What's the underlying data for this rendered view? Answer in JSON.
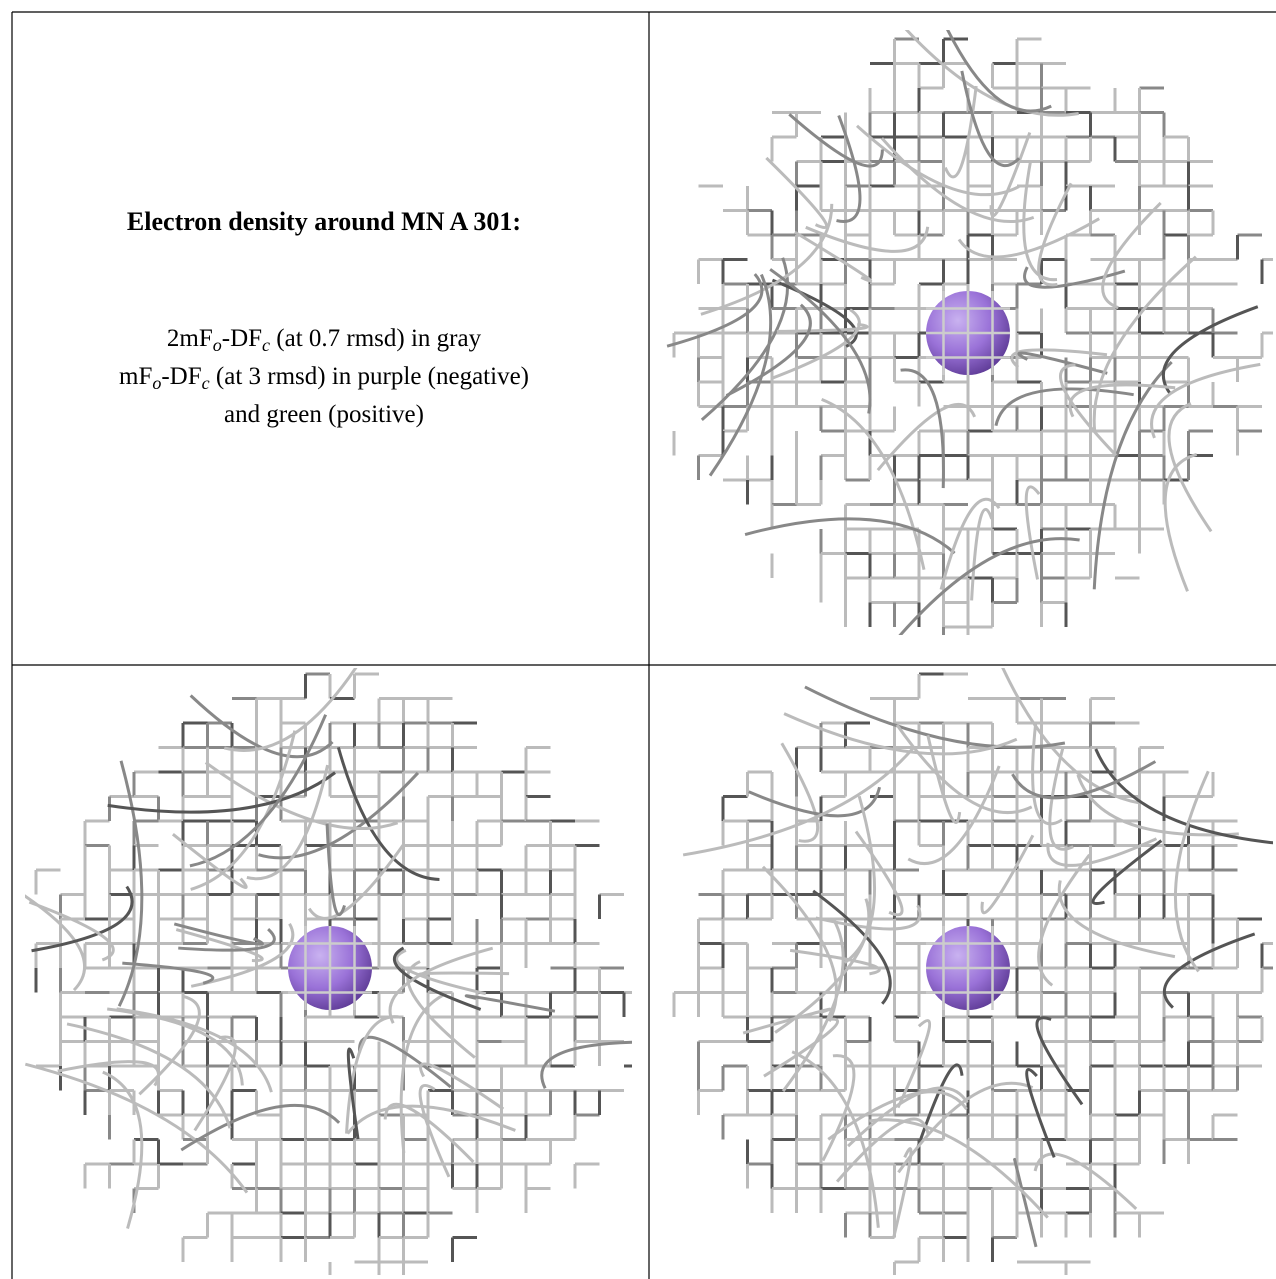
{
  "caption": {
    "title": "Electron density around MN A 301:",
    "lines": [
      [
        "2mF",
        "o",
        "-DF",
        "c",
        " (at 0.7 rmsd) in gray"
      ],
      [
        "mF",
        "o",
        "-DF",
        "c",
        " (at 3 rmsd) in purple (negative)"
      ],
      [
        "and green (positive)"
      ]
    ]
  }
}
